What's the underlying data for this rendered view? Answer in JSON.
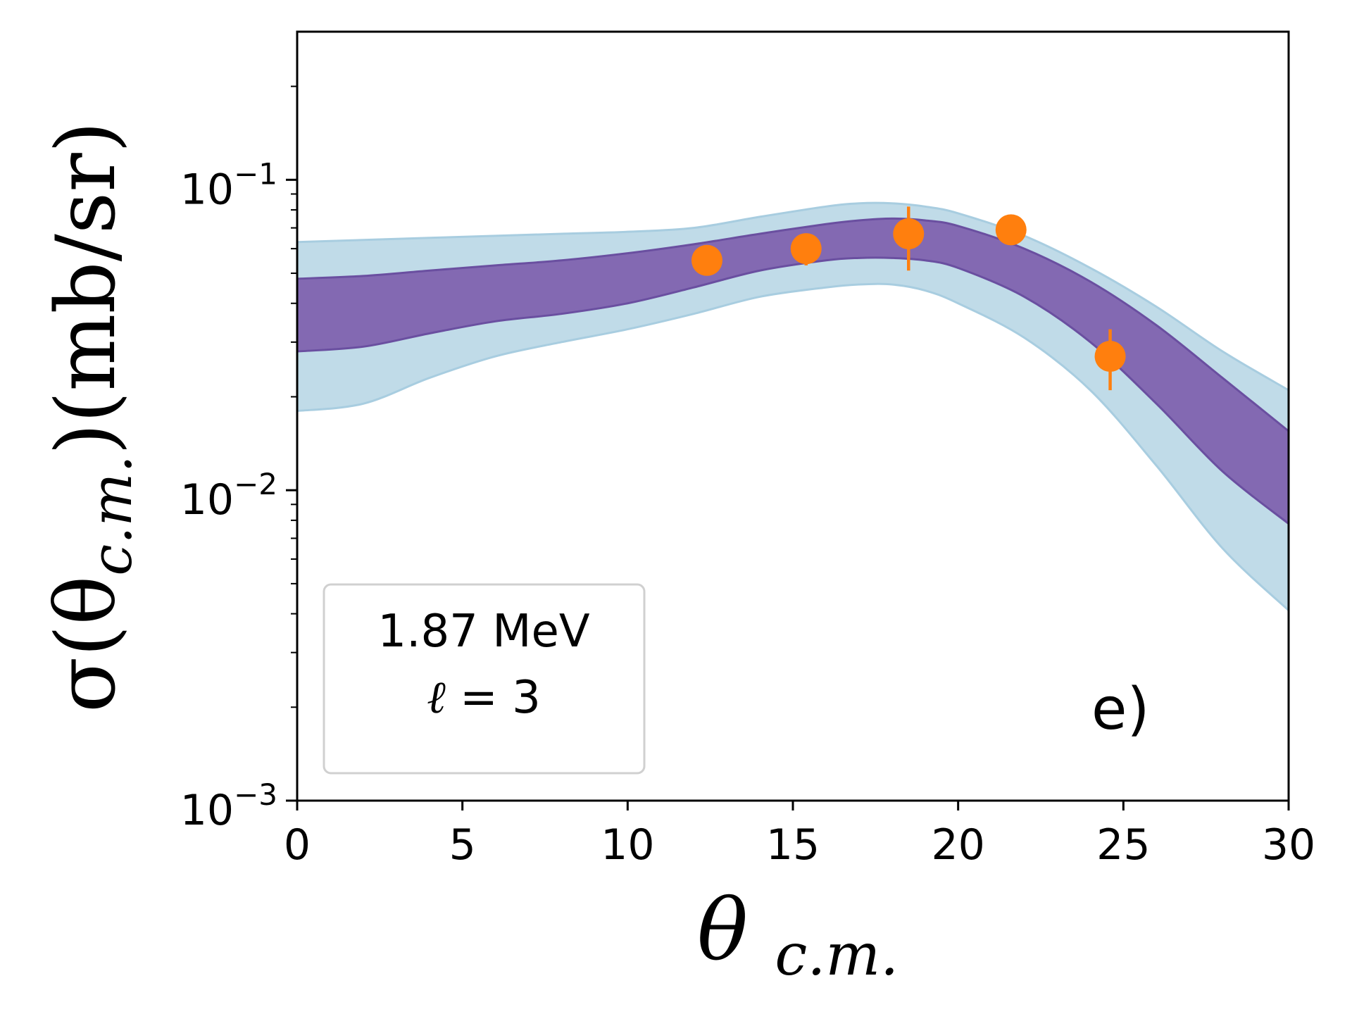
{
  "chart_data": {
    "type": "line",
    "title": "",
    "xlabel": "θ_c.m.",
    "ylabel": "σ(θ_c.m.)(mb/sr)",
    "xlabel_main": "θ",
    "xlabel_sub": "c.m.",
    "ylabel_prefix": "σ(θ",
    "ylabel_sub": "c.m.",
    "ylabel_suffix": ")(mb/sr)",
    "xlim": [
      0,
      30
    ],
    "ylim": [
      0.001,
      0.3
    ],
    "yscale": "log",
    "grid": false,
    "x_ticks": [
      0,
      5,
      10,
      15,
      20,
      25,
      30
    ],
    "y_ticks": [
      {
        "value": 0.001,
        "base": "10",
        "exp": "−3"
      },
      {
        "value": 0.01,
        "base": "10",
        "exp": "−2"
      },
      {
        "value": 0.1,
        "base": "10",
        "exp": "−1"
      }
    ],
    "annotation": {
      "energy": "1.87 MeV",
      "l_symbol": "ℓ",
      "l_eq": " = 3",
      "panel": "e)"
    },
    "x": [
      0,
      2,
      4,
      6,
      8,
      10,
      12,
      14,
      16,
      17,
      18,
      19,
      20,
      22,
      24,
      26,
      28,
      30
    ],
    "series": [
      {
        "name": "outer band (light blue)",
        "color": "#c0dbe8",
        "edge": "#a8cde0",
        "upper": [
          0.063,
          0.064,
          0.065,
          0.066,
          0.067,
          0.068,
          0.07,
          0.076,
          0.082,
          0.084,
          0.084,
          0.082,
          0.078,
          0.066,
          0.052,
          0.039,
          0.028,
          0.021
        ],
        "lower": [
          0.018,
          0.019,
          0.023,
          0.027,
          0.03,
          0.033,
          0.037,
          0.042,
          0.045,
          0.046,
          0.046,
          0.044,
          0.04,
          0.031,
          0.021,
          0.012,
          0.0065,
          0.0041
        ]
      },
      {
        "name": "inner band (purple)",
        "color": "#8369b2",
        "edge": "#6a4fa0",
        "upper": [
          0.048,
          0.049,
          0.051,
          0.053,
          0.055,
          0.058,
          0.062,
          0.067,
          0.072,
          0.074,
          0.075,
          0.074,
          0.071,
          0.06,
          0.047,
          0.034,
          0.023,
          0.0155
        ],
        "lower": [
          0.028,
          0.029,
          0.032,
          0.035,
          0.037,
          0.04,
          0.045,
          0.051,
          0.055,
          0.056,
          0.056,
          0.055,
          0.052,
          0.042,
          0.03,
          0.019,
          0.0115,
          0.0078
        ]
      }
    ],
    "points": {
      "name": "data",
      "color": "#ff7f0e",
      "x": [
        12.4,
        15.4,
        18.5,
        21.6,
        24.6
      ],
      "y": [
        0.055,
        0.06,
        0.067,
        0.069,
        0.027
      ],
      "yerr_low": [
        0.05,
        0.053,
        0.051,
        0.063,
        0.021
      ],
      "yerr_high": [
        0.061,
        0.066,
        0.082,
        0.075,
        0.033
      ]
    },
    "legend": "upper-left inside axes (bottom)"
  }
}
